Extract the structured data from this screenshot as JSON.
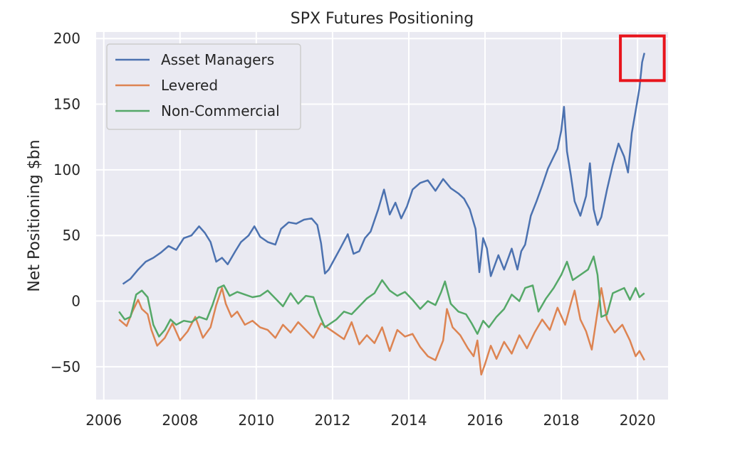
{
  "chart_data": {
    "type": "line",
    "title": "SPX Futures Positioning",
    "xlabel": "",
    "ylabel": "Net Positioning $bn",
    "xlim": [
      2005.8,
      2020.8
    ],
    "ylim": [
      -75,
      205
    ],
    "x_ticks": [
      2006,
      2008,
      2010,
      2012,
      2014,
      2016,
      2018,
      2020
    ],
    "y_ticks": [
      -50,
      0,
      50,
      100,
      150,
      200
    ],
    "grid": true,
    "legend_position": "top-left",
    "highlight_box": {
      "x": [
        2019.55,
        2020.7
      ],
      "y": [
        168,
        202
      ],
      "color": "#e8141c"
    },
    "series": [
      {
        "name": "Asset Managers",
        "color": "#4c72b0",
        "points": [
          [
            2006.5,
            13
          ],
          [
            2006.7,
            17
          ],
          [
            2006.9,
            24
          ],
          [
            2007.1,
            30
          ],
          [
            2007.3,
            33
          ],
          [
            2007.5,
            37
          ],
          [
            2007.7,
            42
          ],
          [
            2007.9,
            39
          ],
          [
            2008.1,
            48
          ],
          [
            2008.3,
            50
          ],
          [
            2008.5,
            57
          ],
          [
            2008.65,
            52
          ],
          [
            2008.8,
            45
          ],
          [
            2008.95,
            30
          ],
          [
            2009.1,
            33
          ],
          [
            2009.25,
            28
          ],
          [
            2009.45,
            38
          ],
          [
            2009.6,
            45
          ],
          [
            2009.8,
            50
          ],
          [
            2009.95,
            57
          ],
          [
            2010.1,
            49
          ],
          [
            2010.3,
            45
          ],
          [
            2010.5,
            43
          ],
          [
            2010.65,
            55
          ],
          [
            2010.85,
            60
          ],
          [
            2011.05,
            59
          ],
          [
            2011.25,
            62
          ],
          [
            2011.45,
            63
          ],
          [
            2011.6,
            58
          ],
          [
            2011.7,
            44
          ],
          [
            2011.8,
            21
          ],
          [
            2011.9,
            24
          ],
          [
            2012.05,
            32
          ],
          [
            2012.2,
            40
          ],
          [
            2012.4,
            51
          ],
          [
            2012.55,
            36
          ],
          [
            2012.7,
            38
          ],
          [
            2012.85,
            48
          ],
          [
            2013.0,
            53
          ],
          [
            2013.2,
            70
          ],
          [
            2013.35,
            85
          ],
          [
            2013.5,
            66
          ],
          [
            2013.65,
            75
          ],
          [
            2013.8,
            63
          ],
          [
            2013.95,
            72
          ],
          [
            2014.1,
            85
          ],
          [
            2014.3,
            90
          ],
          [
            2014.5,
            92
          ],
          [
            2014.7,
            84
          ],
          [
            2014.9,
            93
          ],
          [
            2015.1,
            86
          ],
          [
            2015.3,
            82
          ],
          [
            2015.45,
            78
          ],
          [
            2015.6,
            70
          ],
          [
            2015.75,
            55
          ],
          [
            2015.85,
            22
          ],
          [
            2015.95,
            48
          ],
          [
            2016.05,
            40
          ],
          [
            2016.15,
            19
          ],
          [
            2016.35,
            35
          ],
          [
            2016.5,
            24
          ],
          [
            2016.7,
            40
          ],
          [
            2016.85,
            24
          ],
          [
            2016.95,
            38
          ],
          [
            2017.05,
            43
          ],
          [
            2017.2,
            65
          ],
          [
            2017.35,
            76
          ],
          [
            2017.5,
            88
          ],
          [
            2017.65,
            101
          ],
          [
            2017.8,
            110
          ],
          [
            2017.9,
            116
          ],
          [
            2018.0,
            130
          ],
          [
            2018.07,
            148
          ],
          [
            2018.15,
            114
          ],
          [
            2018.25,
            96
          ],
          [
            2018.35,
            76
          ],
          [
            2018.5,
            65
          ],
          [
            2018.65,
            80
          ],
          [
            2018.75,
            105
          ],
          [
            2018.85,
            70
          ],
          [
            2018.95,
            58
          ],
          [
            2019.05,
            64
          ],
          [
            2019.2,
            85
          ],
          [
            2019.35,
            104
          ],
          [
            2019.5,
            120
          ],
          [
            2019.65,
            110
          ],
          [
            2019.75,
            98
          ],
          [
            2019.85,
            128
          ],
          [
            2019.95,
            145
          ],
          [
            2020.05,
            162
          ],
          [
            2020.12,
            182
          ],
          [
            2020.18,
            189
          ]
        ]
      },
      {
        "name": "Levered",
        "color": "#dd8452",
        "points": [
          [
            2006.4,
            -14
          ],
          [
            2006.6,
            -19
          ],
          [
            2006.75,
            -8
          ],
          [
            2006.9,
            1
          ],
          [
            2007.0,
            -6
          ],
          [
            2007.15,
            -10
          ],
          [
            2007.25,
            -22
          ],
          [
            2007.4,
            -34
          ],
          [
            2007.6,
            -28
          ],
          [
            2007.8,
            -17
          ],
          [
            2008.0,
            -30
          ],
          [
            2008.2,
            -23
          ],
          [
            2008.4,
            -12
          ],
          [
            2008.6,
            -28
          ],
          [
            2008.8,
            -20
          ],
          [
            2008.95,
            -3
          ],
          [
            2009.1,
            10
          ],
          [
            2009.2,
            -2
          ],
          [
            2009.35,
            -12
          ],
          [
            2009.5,
            -8
          ],
          [
            2009.7,
            -18
          ],
          [
            2009.9,
            -15
          ],
          [
            2010.1,
            -20
          ],
          [
            2010.3,
            -22
          ],
          [
            2010.5,
            -28
          ],
          [
            2010.7,
            -18
          ],
          [
            2010.9,
            -24
          ],
          [
            2011.1,
            -16
          ],
          [
            2011.3,
            -22
          ],
          [
            2011.5,
            -28
          ],
          [
            2011.7,
            -17
          ],
          [
            2011.9,
            -21
          ],
          [
            2012.1,
            -25
          ],
          [
            2012.3,
            -29
          ],
          [
            2012.5,
            -16
          ],
          [
            2012.7,
            -33
          ],
          [
            2012.9,
            -26
          ],
          [
            2013.1,
            -32
          ],
          [
            2013.3,
            -20
          ],
          [
            2013.5,
            -38
          ],
          [
            2013.7,
            -22
          ],
          [
            2013.9,
            -27
          ],
          [
            2014.1,
            -25
          ],
          [
            2014.3,
            -35
          ],
          [
            2014.5,
            -42
          ],
          [
            2014.7,
            -45
          ],
          [
            2014.9,
            -30
          ],
          [
            2015.0,
            -6
          ],
          [
            2015.15,
            -20
          ],
          [
            2015.35,
            -26
          ],
          [
            2015.55,
            -36
          ],
          [
            2015.7,
            -42
          ],
          [
            2015.8,
            -30
          ],
          [
            2015.9,
            -56
          ],
          [
            2016.0,
            -48
          ],
          [
            2016.15,
            -34
          ],
          [
            2016.3,
            -44
          ],
          [
            2016.5,
            -31
          ],
          [
            2016.7,
            -40
          ],
          [
            2016.9,
            -26
          ],
          [
            2017.1,
            -36
          ],
          [
            2017.3,
            -24
          ],
          [
            2017.5,
            -14
          ],
          [
            2017.7,
            -22
          ],
          [
            2017.9,
            -5
          ],
          [
            2018.1,
            -18
          ],
          [
            2018.25,
            -2
          ],
          [
            2018.35,
            8
          ],
          [
            2018.5,
            -14
          ],
          [
            2018.65,
            -23
          ],
          [
            2018.8,
            -37
          ],
          [
            2018.95,
            -8
          ],
          [
            2019.05,
            10
          ],
          [
            2019.2,
            -14
          ],
          [
            2019.4,
            -24
          ],
          [
            2019.6,
            -18
          ],
          [
            2019.8,
            -30
          ],
          [
            2019.95,
            -42
          ],
          [
            2020.05,
            -38
          ],
          [
            2020.18,
            -45
          ]
        ]
      },
      {
        "name": "Non-Commercial",
        "color": "#55a868",
        "points": [
          [
            2006.4,
            -8
          ],
          [
            2006.55,
            -14
          ],
          [
            2006.7,
            -12
          ],
          [
            2006.85,
            5
          ],
          [
            2007.0,
            8
          ],
          [
            2007.15,
            3
          ],
          [
            2007.3,
            -18
          ],
          [
            2007.45,
            -27
          ],
          [
            2007.6,
            -22
          ],
          [
            2007.75,
            -14
          ],
          [
            2007.9,
            -18
          ],
          [
            2008.1,
            -15
          ],
          [
            2008.3,
            -16
          ],
          [
            2008.5,
            -12
          ],
          [
            2008.7,
            -14
          ],
          [
            2008.85,
            -3
          ],
          [
            2009.0,
            10
          ],
          [
            2009.15,
            12
          ],
          [
            2009.3,
            4
          ],
          [
            2009.5,
            7
          ],
          [
            2009.7,
            5
          ],
          [
            2009.9,
            3
          ],
          [
            2010.1,
            4
          ],
          [
            2010.3,
            8
          ],
          [
            2010.5,
            2
          ],
          [
            2010.7,
            -4
          ],
          [
            2010.9,
            6
          ],
          [
            2011.1,
            -2
          ],
          [
            2011.3,
            4
          ],
          [
            2011.5,
            3
          ],
          [
            2011.65,
            -10
          ],
          [
            2011.8,
            -20
          ],
          [
            2011.95,
            -17
          ],
          [
            2012.1,
            -14
          ],
          [
            2012.3,
            -8
          ],
          [
            2012.5,
            -10
          ],
          [
            2012.7,
            -4
          ],
          [
            2012.9,
            2
          ],
          [
            2013.1,
            6
          ],
          [
            2013.3,
            16
          ],
          [
            2013.5,
            8
          ],
          [
            2013.7,
            4
          ],
          [
            2013.9,
            7
          ],
          [
            2014.1,
            1
          ],
          [
            2014.3,
            -6
          ],
          [
            2014.5,
            0
          ],
          [
            2014.7,
            -3
          ],
          [
            2014.85,
            7
          ],
          [
            2014.95,
            15
          ],
          [
            2015.1,
            -2
          ],
          [
            2015.3,
            -8
          ],
          [
            2015.5,
            -10
          ],
          [
            2015.65,
            -17
          ],
          [
            2015.8,
            -25
          ],
          [
            2015.95,
            -15
          ],
          [
            2016.1,
            -20
          ],
          [
            2016.3,
            -12
          ],
          [
            2016.5,
            -6
          ],
          [
            2016.7,
            5
          ],
          [
            2016.9,
            0
          ],
          [
            2017.05,
            10
          ],
          [
            2017.25,
            12
          ],
          [
            2017.4,
            -8
          ],
          [
            2017.6,
            2
          ],
          [
            2017.8,
            10
          ],
          [
            2018.0,
            20
          ],
          [
            2018.15,
            30
          ],
          [
            2018.3,
            16
          ],
          [
            2018.5,
            20
          ],
          [
            2018.7,
            24
          ],
          [
            2018.85,
            34
          ],
          [
            2018.95,
            20
          ],
          [
            2019.05,
            -12
          ],
          [
            2019.2,
            -10
          ],
          [
            2019.35,
            6
          ],
          [
            2019.5,
            8
          ],
          [
            2019.65,
            10
          ],
          [
            2019.8,
            1
          ],
          [
            2019.95,
            10
          ],
          [
            2020.05,
            3
          ],
          [
            2020.18,
            6
          ]
        ]
      }
    ]
  }
}
